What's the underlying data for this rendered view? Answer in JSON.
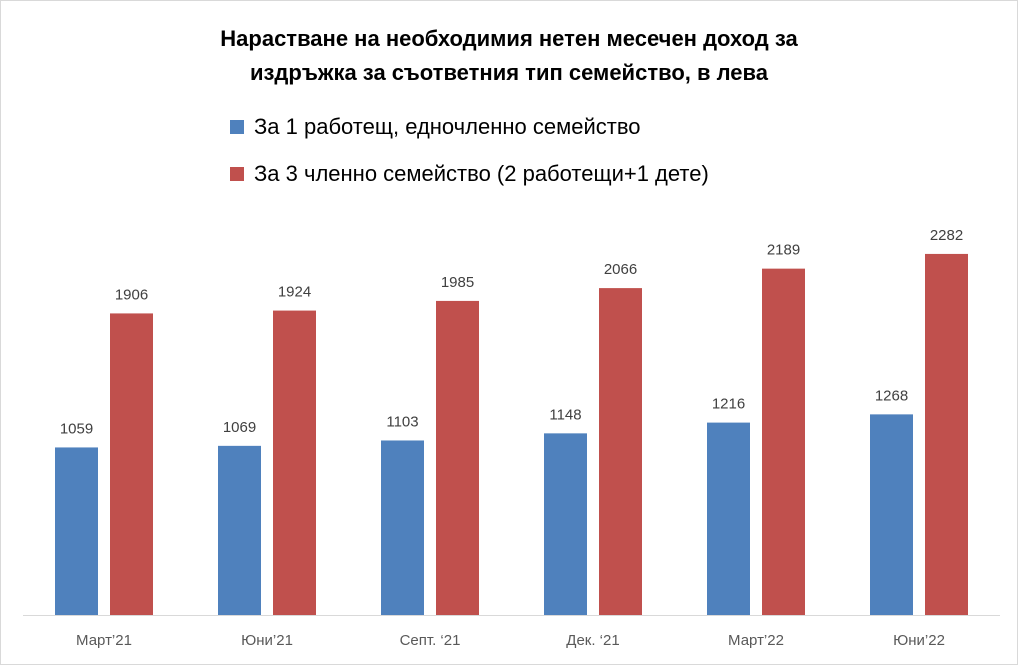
{
  "chart_data": {
    "type": "bar",
    "title_line1": "Нарастване на необходимия нетен месечен доход за",
    "title_line2": "издръжка за съответния тип семейство, в лева",
    "categories": [
      "Март’21",
      "Юни’21",
      "Септ. ‘21",
      "Дек. ‘21",
      "Март’22",
      "Юни’22"
    ],
    "series": [
      {
        "name": "За 1 работещ,  едночленно семейство",
        "color": "#4f81bd",
        "values": [
          1059,
          1069,
          1103,
          1148,
          1216,
          1268
        ]
      },
      {
        "name": "За 3 членно семейство (2 работещи+1 дете)",
        "color": "#c0504d",
        "values": [
          1906,
          1924,
          1985,
          2066,
          2189,
          2282
        ]
      }
    ],
    "xlabel": "",
    "ylabel": "",
    "ylim": [
      0,
      2400
    ],
    "grid": false,
    "legend": "top",
    "data_labels": true
  }
}
